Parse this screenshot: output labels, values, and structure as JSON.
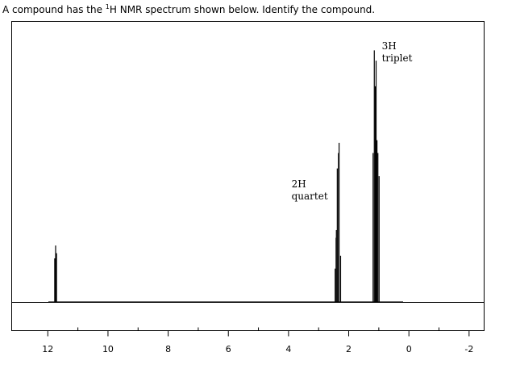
{
  "question": {
    "pre": "A compound has the ",
    "sup": "1",
    "post": "H NMR spectrum shown below. Identify the compound."
  },
  "chart_data": {
    "type": "line",
    "title": "",
    "xlabel": "",
    "ylabel": "",
    "xlim": [
      13.2,
      -2.5
    ],
    "x_reversed": true,
    "ticks": [
      12,
      10,
      8,
      6,
      4,
      2,
      0,
      -2
    ],
    "tick_labels": [
      "12",
      "10",
      "8",
      "6",
      "4",
      "2",
      "0",
      "-2"
    ],
    "minor_ticks": [
      11,
      9,
      7,
      5,
      3,
      1,
      -1
    ],
    "grid": false,
    "peaks": [
      {
        "group": "acid",
        "shift": 11.77,
        "intensity": 0.17
      },
      {
        "group": "acid",
        "shift": 11.74,
        "intensity": 0.22
      },
      {
        "group": "acid",
        "shift": 11.71,
        "intensity": 0.19
      },
      {
        "group": "quartet",
        "shift": 2.45,
        "intensity": 0.13
      },
      {
        "group": "quartet",
        "shift": 2.42,
        "intensity": 0.25
      },
      {
        "group": "quartet",
        "shift": 2.41,
        "intensity": 0.28
      },
      {
        "group": "quartet",
        "shift": 2.38,
        "intensity": 0.52
      },
      {
        "group": "quartet",
        "shift": 2.34,
        "intensity": 0.58
      },
      {
        "group": "quartet",
        "shift": 2.32,
        "intensity": 0.62
      },
      {
        "group": "quartet",
        "shift": 2.27,
        "intensity": 0.18
      },
      {
        "group": "triplet",
        "shift": 1.19,
        "intensity": 0.58
      },
      {
        "group": "triplet",
        "shift": 1.15,
        "intensity": 0.98
      },
      {
        "group": "triplet",
        "shift": 1.12,
        "intensity": 0.84
      },
      {
        "group": "triplet",
        "shift": 1.09,
        "intensity": 0.94
      },
      {
        "group": "triplet",
        "shift": 1.06,
        "intensity": 0.63
      },
      {
        "group": "triplet",
        "shift": 1.03,
        "intensity": 0.58
      },
      {
        "group": "triplet",
        "shift": 0.99,
        "intensity": 0.49
      }
    ],
    "annotations": [
      {
        "name": "quartet",
        "count": "2H",
        "label": "quartet",
        "shift": 3.9,
        "intensity": 0.48
      },
      {
        "name": "triplet",
        "count": "3H",
        "label": "triplet",
        "shift": 0.9,
        "intensity": 1.02
      }
    ]
  }
}
